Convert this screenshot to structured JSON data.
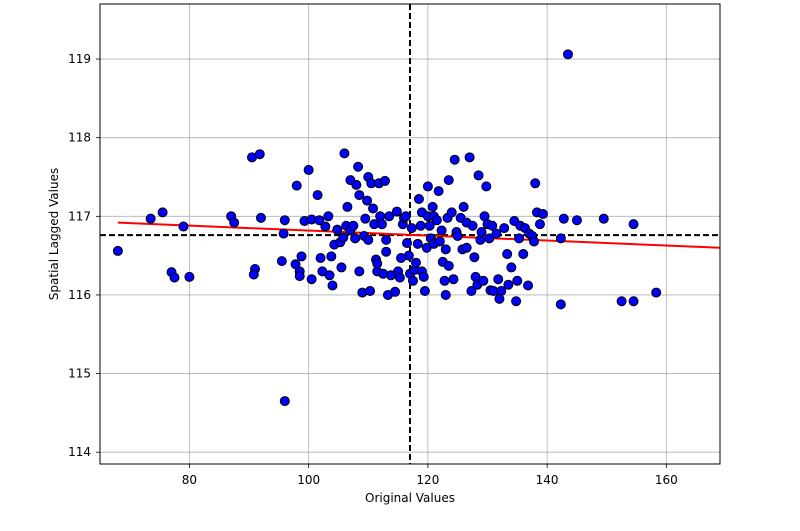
{
  "chart_data": {
    "type": "scatter",
    "title": "",
    "xlabel": "Original Values",
    "ylabel": "Spatial Lagged Values",
    "xlim": [
      65,
      169
    ],
    "ylim": [
      113.85,
      119.7
    ],
    "xticks": [
      80,
      100,
      120,
      140,
      160
    ],
    "yticks": [
      114,
      115,
      116,
      117,
      118,
      119
    ],
    "grid": true,
    "colors": {
      "points": "#0000ff",
      "point_edge": "#000000",
      "fit_line": "#ff0000",
      "reference_lines": "#000000"
    },
    "reference_lines": {
      "vertical_x": 117.0,
      "horizontal_y": 116.76
    },
    "fit_line": {
      "x": [
        68,
        169
      ],
      "y": [
        116.92,
        116.6
      ]
    },
    "points": [
      [
        68.0,
        116.56
      ],
      [
        73.5,
        116.97
      ],
      [
        75.5,
        117.05
      ],
      [
        77.0,
        116.29
      ],
      [
        77.5,
        116.22
      ],
      [
        79.0,
        116.87
      ],
      [
        80.0,
        116.23
      ],
      [
        87.0,
        117.0
      ],
      [
        87.5,
        116.92
      ],
      [
        90.5,
        117.75
      ],
      [
        91.8,
        117.79
      ],
      [
        92.0,
        116.98
      ],
      [
        91.0,
        116.33
      ],
      [
        90.8,
        116.26
      ],
      [
        95.5,
        116.43
      ],
      [
        95.8,
        116.78
      ],
      [
        96.0,
        116.95
      ],
      [
        96.0,
        114.65
      ],
      [
        97.8,
        116.39
      ],
      [
        98.5,
        116.3
      ],
      [
        98.5,
        116.24
      ],
      [
        98.8,
        116.49
      ],
      [
        99.3,
        116.94
      ],
      [
        98.0,
        117.39
      ],
      [
        100.0,
        117.59
      ],
      [
        100.5,
        116.96
      ],
      [
        101.5,
        117.27
      ],
      [
        101.8,
        116.95
      ],
      [
        100.5,
        116.2
      ],
      [
        102.0,
        116.47
      ],
      [
        102.3,
        116.3
      ],
      [
        102.8,
        116.87
      ],
      [
        103.3,
        117.0
      ],
      [
        103.5,
        116.25
      ],
      [
        103.8,
        116.49
      ],
      [
        104.0,
        116.12
      ],
      [
        104.3,
        116.64
      ],
      [
        104.8,
        116.83
      ],
      [
        105.3,
        116.67
      ],
      [
        105.5,
        116.35
      ],
      [
        105.8,
        116.73
      ],
      [
        106.0,
        117.8
      ],
      [
        106.3,
        116.88
      ],
      [
        106.5,
        117.12
      ],
      [
        107.0,
        116.82
      ],
      [
        107.0,
        117.46
      ],
      [
        107.5,
        116.88
      ],
      [
        107.8,
        116.72
      ],
      [
        108.0,
        117.4
      ],
      [
        108.3,
        117.63
      ],
      [
        108.5,
        117.27
      ],
      [
        108.5,
        116.3
      ],
      [
        109.0,
        116.03
      ],
      [
        109.3,
        116.75
      ],
      [
        109.5,
        116.97
      ],
      [
        109.8,
        117.2
      ],
      [
        110.0,
        117.5
      ],
      [
        110.0,
        116.7
      ],
      [
        110.3,
        116.05
      ],
      [
        110.5,
        117.42
      ],
      [
        110.8,
        117.1
      ],
      [
        111.0,
        116.9
      ],
      [
        111.3,
        116.45
      ],
      [
        111.5,
        116.3
      ],
      [
        111.5,
        116.4
      ],
      [
        111.8,
        117.42
      ],
      [
        112.0,
        117.0
      ],
      [
        112.3,
        116.9
      ],
      [
        112.5,
        116.27
      ],
      [
        112.8,
        117.45
      ],
      [
        113.0,
        116.7
      ],
      [
        113.0,
        116.55
      ],
      [
        113.3,
        116.0
      ],
      [
        113.5,
        117.0
      ],
      [
        113.8,
        116.25
      ],
      [
        114.5,
        116.04
      ],
      [
        114.8,
        117.06
      ],
      [
        115.0,
        116.3
      ],
      [
        115.3,
        116.22
      ],
      [
        115.5,
        116.47
      ],
      [
        115.8,
        116.9
      ],
      [
        116.0,
        116.98
      ],
      [
        116.3,
        117.0
      ],
      [
        116.5,
        116.66
      ],
      [
        116.8,
        116.5
      ],
      [
        117.0,
        116.27
      ],
      [
        117.3,
        116.85
      ],
      [
        117.5,
        116.18
      ],
      [
        117.8,
        116.32
      ],
      [
        118.0,
        116.41
      ],
      [
        118.3,
        116.65
      ],
      [
        118.5,
        117.22
      ],
      [
        118.8,
        116.88
      ],
      [
        119.0,
        117.05
      ],
      [
        119.0,
        116.3
      ],
      [
        119.3,
        116.23
      ],
      [
        119.5,
        116.05
      ],
      [
        119.8,
        116.6
      ],
      [
        120.0,
        117.0
      ],
      [
        120.0,
        117.38
      ],
      [
        120.3,
        116.88
      ],
      [
        120.5,
        116.72
      ],
      [
        120.8,
        117.12
      ],
      [
        121.0,
        117.0
      ],
      [
        121.0,
        116.65
      ],
      [
        121.5,
        116.95
      ],
      [
        121.8,
        117.32
      ],
      [
        122.0,
        116.68
      ],
      [
        122.3,
        116.82
      ],
      [
        122.5,
        116.42
      ],
      [
        122.8,
        116.18
      ],
      [
        123.0,
        116.0
      ],
      [
        123.0,
        116.58
      ],
      [
        123.3,
        116.98
      ],
      [
        123.5,
        116.37
      ],
      [
        123.5,
        117.46
      ],
      [
        124.0,
        117.05
      ],
      [
        124.3,
        116.2
      ],
      [
        124.5,
        117.72
      ],
      [
        124.8,
        116.8
      ],
      [
        125.0,
        116.75
      ],
      [
        125.5,
        116.98
      ],
      [
        125.8,
        116.58
      ],
      [
        126.0,
        117.12
      ],
      [
        126.5,
        116.92
      ],
      [
        126.5,
        116.6
      ],
      [
        127.0,
        117.75
      ],
      [
        127.3,
        116.05
      ],
      [
        127.5,
        116.88
      ],
      [
        127.8,
        116.48
      ],
      [
        128.0,
        116.23
      ],
      [
        128.3,
        116.13
      ],
      [
        128.5,
        117.52
      ],
      [
        128.8,
        116.7
      ],
      [
        129.0,
        116.8
      ],
      [
        129.3,
        116.18
      ],
      [
        129.5,
        117.0
      ],
      [
        129.8,
        117.38
      ],
      [
        130.0,
        116.9
      ],
      [
        130.3,
        116.72
      ],
      [
        130.5,
        116.06
      ],
      [
        130.8,
        116.88
      ],
      [
        131.0,
        116.05
      ],
      [
        131.5,
        116.78
      ],
      [
        131.8,
        116.2
      ],
      [
        132.0,
        115.95
      ],
      [
        132.3,
        116.05
      ],
      [
        132.8,
        116.85
      ],
      [
        133.3,
        116.52
      ],
      [
        133.5,
        116.13
      ],
      [
        134.0,
        116.35
      ],
      [
        134.5,
        116.94
      ],
      [
        134.8,
        115.92
      ],
      [
        135.0,
        116.18
      ],
      [
        135.3,
        116.72
      ],
      [
        135.5,
        116.88
      ],
      [
        136.0,
        116.52
      ],
      [
        136.3,
        116.85
      ],
      [
        136.8,
        116.12
      ],
      [
        137.0,
        116.78
      ],
      [
        137.5,
        116.75
      ],
      [
        137.8,
        116.68
      ],
      [
        138.0,
        117.42
      ],
      [
        138.3,
        117.05
      ],
      [
        138.8,
        116.9
      ],
      [
        139.3,
        117.03
      ],
      [
        142.3,
        115.88
      ],
      [
        142.8,
        116.97
      ],
      [
        142.3,
        116.72
      ],
      [
        143.5,
        119.06
      ],
      [
        145.0,
        116.95
      ],
      [
        149.5,
        116.97
      ],
      [
        152.5,
        115.92
      ],
      [
        154.5,
        115.92
      ],
      [
        154.5,
        116.9
      ],
      [
        158.3,
        116.03
      ]
    ]
  }
}
